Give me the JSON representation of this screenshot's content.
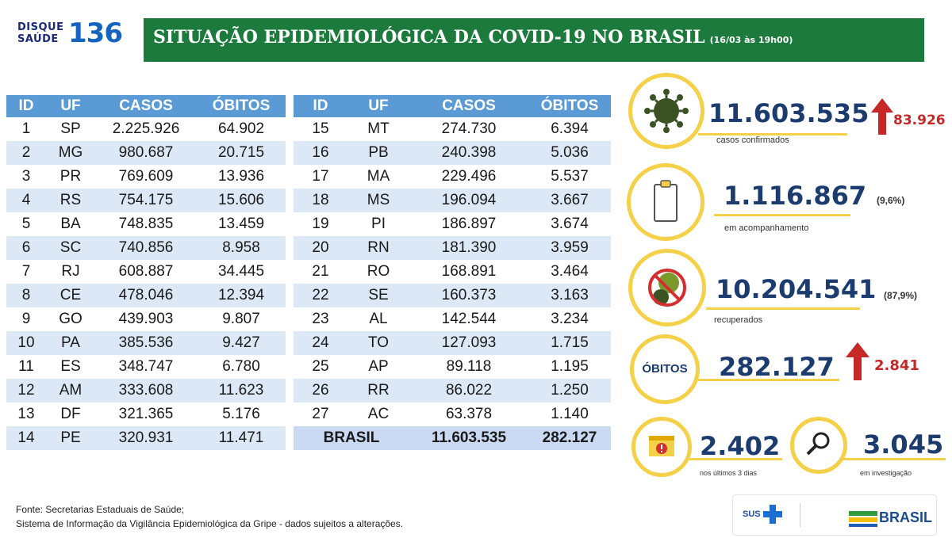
{
  "logo": {
    "line1": "DISQUE",
    "line2": "SAÚDE",
    "number": "136"
  },
  "header": {
    "title": "SITUAÇÃO EPIDEMIOLÓGICA DA COVID-19 NO BRASIL",
    "subtitle": "(16/03 às 19h00)"
  },
  "table": {
    "columns": [
      "ID",
      "UF",
      "CASOS",
      "ÓBITOS"
    ],
    "left_rows": [
      [
        "1",
        "SP",
        "2.225.926",
        "64.902"
      ],
      [
        "2",
        "MG",
        "980.687",
        "20.715"
      ],
      [
        "3",
        "PR",
        "769.609",
        "13.936"
      ],
      [
        "4",
        "RS",
        "754.175",
        "15.606"
      ],
      [
        "5",
        "BA",
        "748.835",
        "13.459"
      ],
      [
        "6",
        "SC",
        "740.856",
        "8.958"
      ],
      [
        "7",
        "RJ",
        "608.887",
        "34.445"
      ],
      [
        "8",
        "CE",
        "478.046",
        "12.394"
      ],
      [
        "9",
        "GO",
        "439.903",
        "9.807"
      ],
      [
        "10",
        "PA",
        "385.536",
        "9.427"
      ],
      [
        "11",
        "ES",
        "348.747",
        "6.780"
      ],
      [
        "12",
        "AM",
        "333.608",
        "11.623"
      ],
      [
        "13",
        "DF",
        "321.365",
        "5.176"
      ],
      [
        "14",
        "PE",
        "320.931",
        "11.471"
      ]
    ],
    "right_rows": [
      [
        "15",
        "MT",
        "274.730",
        "6.394"
      ],
      [
        "16",
        "PB",
        "240.398",
        "5.036"
      ],
      [
        "17",
        "MA",
        "229.496",
        "5.537"
      ],
      [
        "18",
        "MS",
        "196.094",
        "3.667"
      ],
      [
        "19",
        "PI",
        "186.897",
        "3.674"
      ],
      [
        "20",
        "RN",
        "181.390",
        "3.959"
      ],
      [
        "21",
        "RO",
        "168.891",
        "3.464"
      ],
      [
        "22",
        "SE",
        "160.373",
        "3.163"
      ],
      [
        "23",
        "AL",
        "142.544",
        "3.234"
      ],
      [
        "24",
        "TO",
        "127.093",
        "1.715"
      ],
      [
        "25",
        "AP",
        "89.118",
        "1.195"
      ],
      [
        "26",
        "RR",
        "86.022",
        "1.250"
      ],
      [
        "27",
        "AC",
        "63.378",
        "1.140"
      ]
    ],
    "total": {
      "label": "BRASIL",
      "casos": "11.603.535",
      "obitos": "282.127"
    }
  },
  "stats": {
    "confirmed": {
      "value": "11.603.535",
      "increase": "83.926",
      "label": "casos confirmados",
      "icon": "virus-icon"
    },
    "monitoring": {
      "value": "1.116.867",
      "pct": "(9,6%)",
      "label": "em acompanhamento",
      "icon": "clipboard-icon"
    },
    "recovered": {
      "value": "10.204.541",
      "pct": "(87,9%)",
      "label": "recuperados",
      "icon": "no-virus-icon"
    },
    "deaths": {
      "circle_label": "ÓBITOS",
      "value": "282.127",
      "increase": "2.841"
    },
    "last3days": {
      "value": "2.402",
      "label": "nos últimos 3 dias",
      "icon": "calendar-alert-icon"
    },
    "investigation": {
      "value": "3.045",
      "label": "em investigação",
      "icon": "magnifier-icon"
    }
  },
  "footer": {
    "line1": "Fonte: Secretarias Estaduais de Saúde;",
    "line2": "Sistema de Informação da Vigilância Epidemiológica da Gripe - dados sujeitos a alterações."
  },
  "gov": {
    "sus": "SUS",
    "brasil": "BRASIL"
  },
  "colors": {
    "green": "#1b7a3c",
    "yellow": "#f5d049",
    "navy": "#1c3b6e",
    "red": "#c62828",
    "blue": "#5b9bd5"
  }
}
